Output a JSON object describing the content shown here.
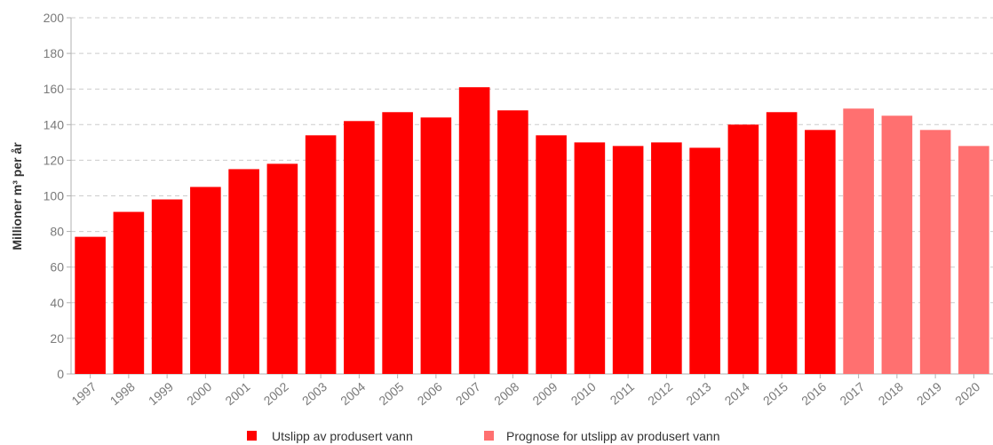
{
  "chart_data": {
    "type": "bar",
    "title": "",
    "xlabel": "",
    "ylabel": "Millioner m³ per år",
    "ylim": [
      0,
      200
    ],
    "yticks": [
      0,
      20,
      40,
      60,
      80,
      100,
      120,
      140,
      160,
      180,
      200
    ],
    "grid": true,
    "legend_position": "bottom",
    "categories": [
      "1997",
      "1998",
      "1999",
      "2000",
      "2001",
      "2002",
      "2003",
      "2004",
      "2005",
      "2006",
      "2007",
      "2008",
      "2009",
      "2010",
      "2011",
      "2012",
      "2013",
      "2014",
      "2015",
      "2016",
      "2017",
      "2018",
      "2019",
      "2020"
    ],
    "series": [
      {
        "name": "Utslipp av produsert vann",
        "color": "#ff0000",
        "values": [
          77,
          91,
          98,
          105,
          115,
          118,
          134,
          142,
          147,
          144,
          161,
          148,
          134,
          130,
          128,
          130,
          127,
          140,
          147,
          137,
          null,
          null,
          null,
          null
        ]
      },
      {
        "name": "Prognose for utslipp av produsert vann",
        "color": "#ff7070",
        "values": [
          null,
          null,
          null,
          null,
          null,
          null,
          null,
          null,
          null,
          null,
          null,
          null,
          null,
          null,
          null,
          null,
          null,
          null,
          null,
          null,
          149,
          145,
          137,
          128
        ]
      }
    ]
  }
}
